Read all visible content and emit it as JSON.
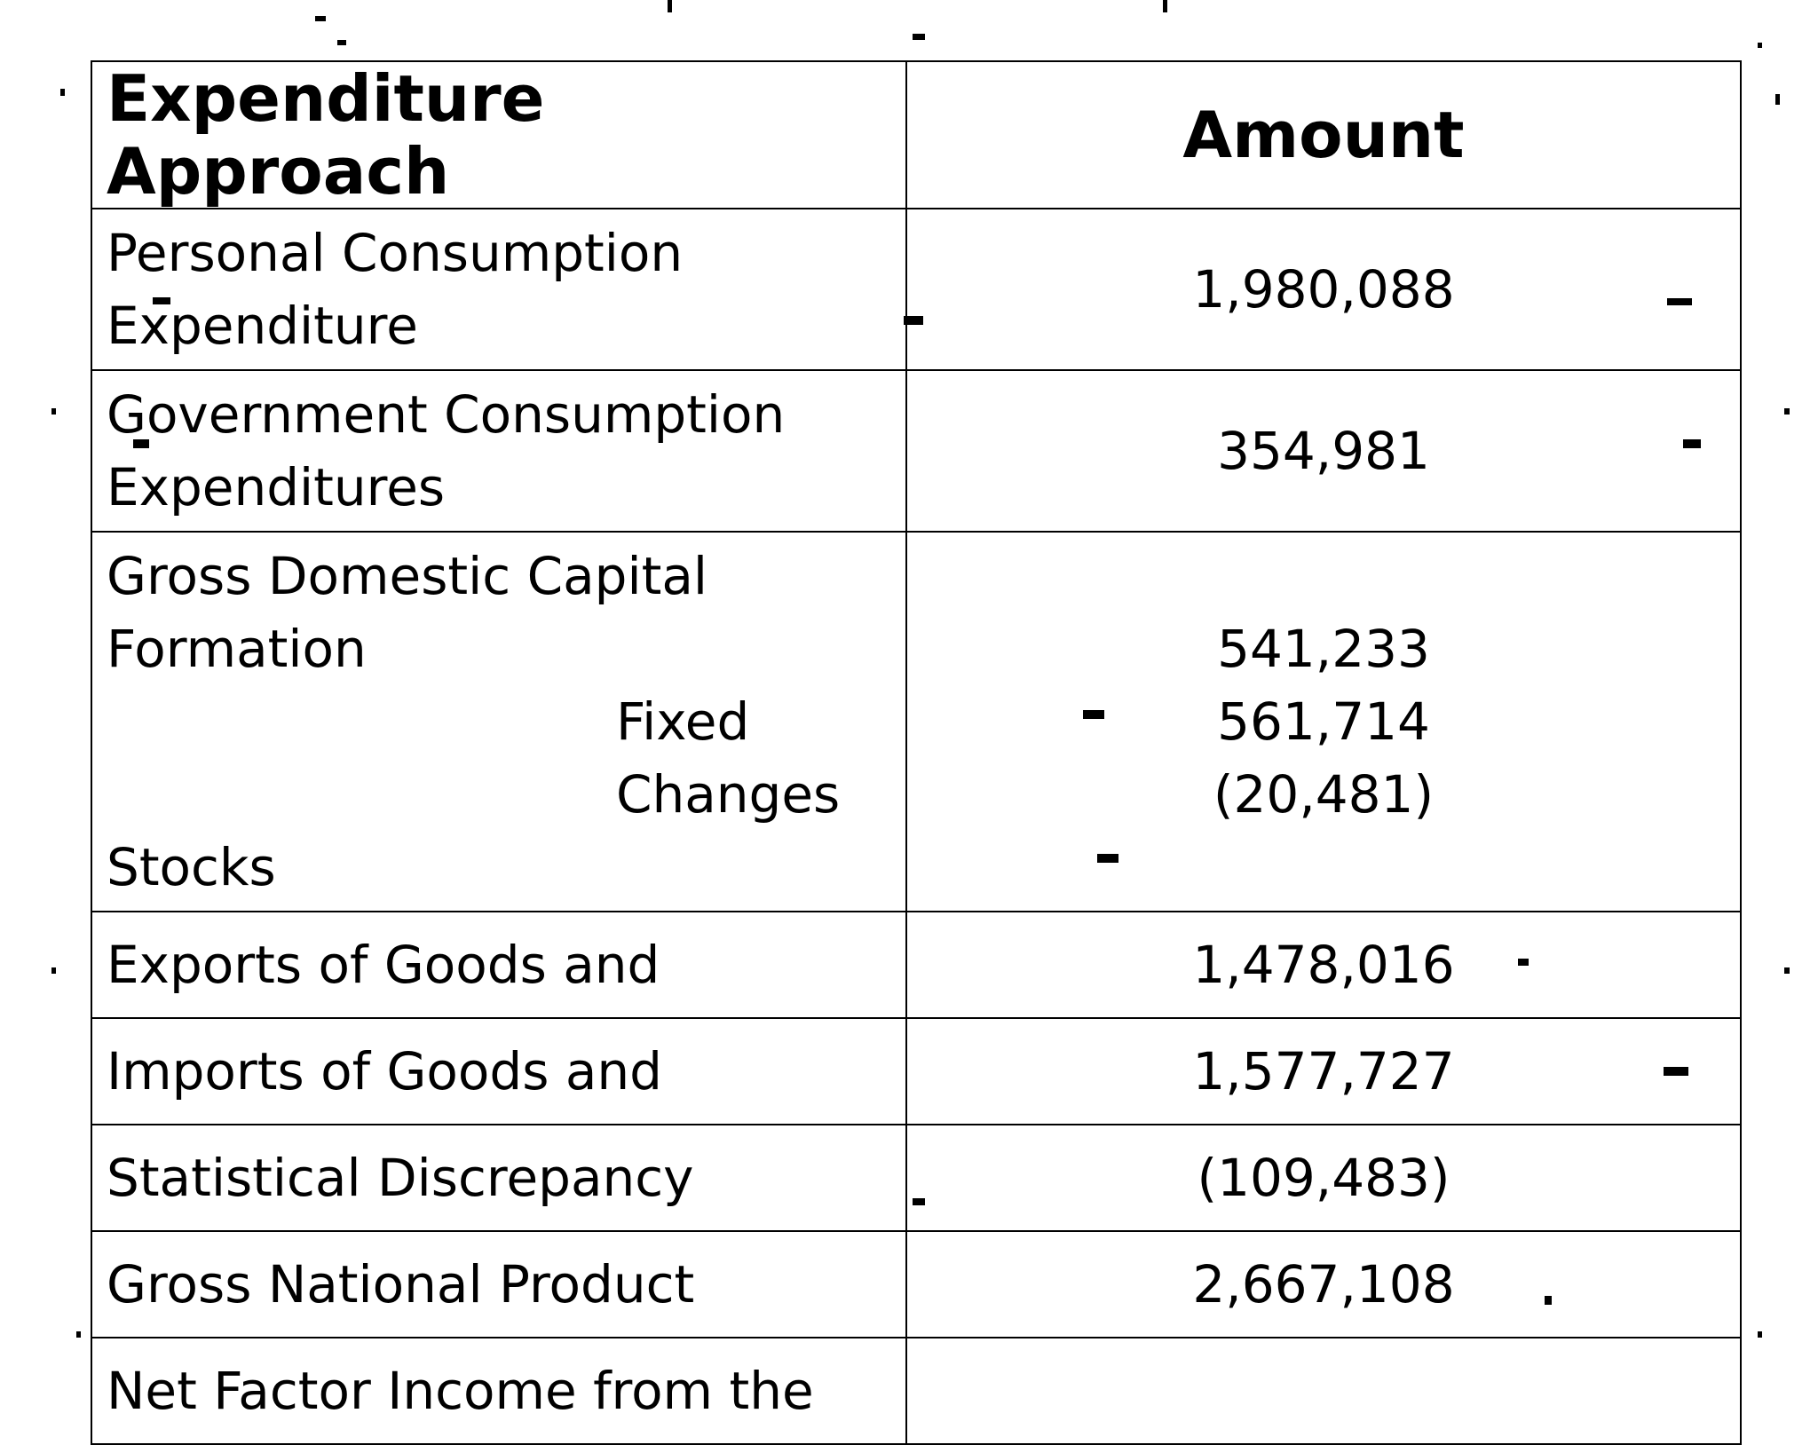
{
  "table": {
    "headers": {
      "label": "Expenditure Approach",
      "amount": "Amount"
    },
    "rows": {
      "pce": {
        "label_line1": "Personal Consumption",
        "label_line2": "Expenditure",
        "amount": "1,980,088"
      },
      "gce": {
        "label_line1": "Government Consumption",
        "label_line2": "Expenditures",
        "amount": "354,981"
      },
      "gdcf": {
        "label_line1": "Gross Domestic Capital",
        "label_line2": "Formation",
        "sub_fixed": "Fixed",
        "sub_changes": "Changes",
        "sub_stocks": "Stocks",
        "amount_total": "541,233",
        "amount_fixed": "561,714",
        "amount_changes": "(20,481)"
      },
      "exports": {
        "label": "Exports of Goods and",
        "amount": "1,478,016"
      },
      "imports": {
        "label": "Imports of Goods and",
        "amount": "1,577,727"
      },
      "discrepancy": {
        "label": "Statistical Discrepancy",
        "amount": "(109,483)"
      },
      "gnp": {
        "label": "Gross National Product",
        "amount": "2,667,108"
      },
      "nfi": {
        "label": "Net Factor Income from the"
      }
    }
  }
}
